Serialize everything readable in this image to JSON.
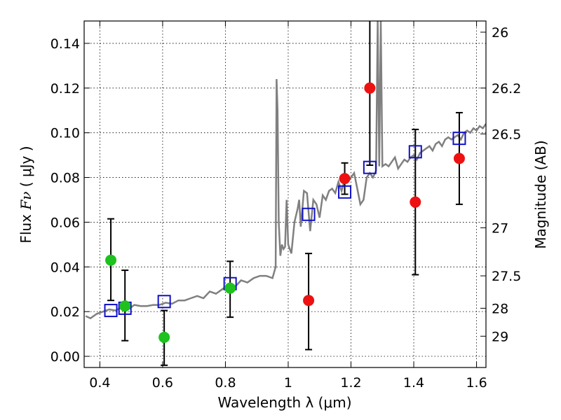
{
  "chart_data": {
    "type": "scatter",
    "xlabel": "Wavelength  λ (μm)",
    "ylabel_text": "Flux ",
    "ylabel_math": "Fν",
    "ylabel_units": " ( μJy )",
    "y2label": "Magnitude (AB)",
    "xlim": [
      0.35,
      1.63
    ],
    "ylim": [
      -0.005,
      0.15
    ],
    "grid": true,
    "xticks": [
      0.4,
      0.6,
      0.8,
      1.0,
      1.2,
      1.4,
      1.6
    ],
    "xtick_labels": [
      "0.4",
      "0.6",
      "0.8",
      "1",
      "1.2",
      "1.4",
      "1.6"
    ],
    "yticks": [
      0.0,
      0.02,
      0.04,
      0.06,
      0.08,
      0.1,
      0.12,
      0.14
    ],
    "ytick_labels": [
      "0.00",
      "0.02",
      "0.04",
      "0.06",
      "0.08",
      "0.10",
      "0.12",
      "0.14"
    ],
    "y2ticks": [
      {
        "label": "26",
        "flux": 0.145
      },
      {
        "label": "26.2",
        "flux": 0.12
      },
      {
        "label": "26.5",
        "flux": 0.0995
      },
      {
        "label": "27",
        "flux": 0.0575
      },
      {
        "label": "27.5",
        "flux": 0.036
      },
      {
        "label": "28",
        "flux": 0.0215
      },
      {
        "label": "29",
        "flux": 0.009
      }
    ],
    "colors": {
      "model": "#808080",
      "green": "#1ec11e",
      "red": "#ee1111",
      "model_points": "#1010c8",
      "errorbar": "#000000"
    },
    "model_spectrum": {
      "x": [
        0.355,
        0.37,
        0.39,
        0.41,
        0.43,
        0.45,
        0.47,
        0.49,
        0.51,
        0.53,
        0.55,
        0.57,
        0.59,
        0.61,
        0.63,
        0.65,
        0.67,
        0.69,
        0.71,
        0.73,
        0.75,
        0.77,
        0.79,
        0.81,
        0.83,
        0.85,
        0.87,
        0.89,
        0.91,
        0.93,
        0.95,
        0.96,
        0.963,
        0.966,
        0.97,
        0.975,
        0.98,
        0.985,
        0.99,
        0.995,
        1.0,
        1.01,
        1.02,
        1.03,
        1.035,
        1.04,
        1.05,
        1.06,
        1.07,
        1.08,
        1.09,
        1.1,
        1.11,
        1.12,
        1.13,
        1.14,
        1.15,
        1.16,
        1.17,
        1.18,
        1.19,
        1.2,
        1.21,
        1.22,
        1.23,
        1.24,
        1.25,
        1.26,
        1.27,
        1.28,
        1.285,
        1.29,
        1.295,
        1.3,
        1.31,
        1.32,
        1.33,
        1.34,
        1.35,
        1.36,
        1.37,
        1.38,
        1.39,
        1.4,
        1.41,
        1.42,
        1.43,
        1.44,
        1.45,
        1.46,
        1.47,
        1.48,
        1.49,
        1.5,
        1.51,
        1.52,
        1.53,
        1.54,
        1.55,
        1.56,
        1.57,
        1.58,
        1.59,
        1.6,
        1.61,
        1.62,
        1.63
      ],
      "y": [
        0.018,
        0.017,
        0.019,
        0.02,
        0.021,
        0.0205,
        0.022,
        0.021,
        0.023,
        0.0225,
        0.0225,
        0.023,
        0.023,
        0.024,
        0.0235,
        0.025,
        0.025,
        0.026,
        0.027,
        0.026,
        0.029,
        0.028,
        0.03,
        0.032,
        0.031,
        0.034,
        0.033,
        0.035,
        0.036,
        0.036,
        0.035,
        0.04,
        0.124,
        0.11,
        0.06,
        0.045,
        0.05,
        0.048,
        0.049,
        0.07,
        0.05,
        0.046,
        0.06,
        0.066,
        0.07,
        0.058,
        0.074,
        0.073,
        0.056,
        0.07,
        0.068,
        0.062,
        0.072,
        0.07,
        0.074,
        0.075,
        0.073,
        0.078,
        0.074,
        0.079,
        0.078,
        0.08,
        0.082,
        0.075,
        0.068,
        0.07,
        0.08,
        0.082,
        0.08,
        0.083,
        0.15,
        0.085,
        0.15,
        0.085,
        0.086,
        0.085,
        0.087,
        0.089,
        0.084,
        0.086,
        0.088,
        0.087,
        0.089,
        0.09,
        0.088,
        0.091,
        0.092,
        0.093,
        0.094,
        0.092,
        0.095,
        0.096,
        0.094,
        0.097,
        0.098,
        0.097,
        0.098,
        0.099,
        0.097,
        0.1,
        0.101,
        0.1,
        0.102,
        0.101,
        0.103,
        0.102,
        0.104
      ]
    },
    "model_points": [
      {
        "x": 0.435,
        "y": 0.0205
      },
      {
        "x": 0.48,
        "y": 0.0215
      },
      {
        "x": 0.605,
        "y": 0.0245
      },
      {
        "x": 0.815,
        "y": 0.0325
      },
      {
        "x": 1.065,
        "y": 0.0635
      },
      {
        "x": 1.18,
        "y": 0.0735
      },
      {
        "x": 1.26,
        "y": 0.0845
      },
      {
        "x": 1.405,
        "y": 0.0915
      },
      {
        "x": 1.545,
        "y": 0.0975
      }
    ],
    "observed_green": [
      {
        "x": 0.435,
        "y": 0.043,
        "lo": 0.025,
        "hi": 0.0615
      },
      {
        "x": 0.48,
        "y": 0.0225,
        "lo": 0.007,
        "hi": 0.0385
      },
      {
        "x": 0.605,
        "y": 0.0085,
        "lo": -0.004,
        "hi": 0.0205
      },
      {
        "x": 0.815,
        "y": 0.0305,
        "lo": 0.0175,
        "hi": 0.0425
      }
    ],
    "observed_red": [
      {
        "x": 1.065,
        "y": 0.025,
        "lo": 0.003,
        "hi": 0.046
      },
      {
        "x": 1.18,
        "y": 0.0795,
        "lo": 0.0725,
        "hi": 0.0865
      },
      {
        "x": 1.26,
        "y": 0.12,
        "lo": 0.0855,
        "hi": 0.152
      },
      {
        "x": 1.405,
        "y": 0.069,
        "lo": 0.0365,
        "hi": 0.1015
      },
      {
        "x": 1.545,
        "y": 0.0885,
        "lo": 0.068,
        "hi": 0.109
      }
    ]
  }
}
